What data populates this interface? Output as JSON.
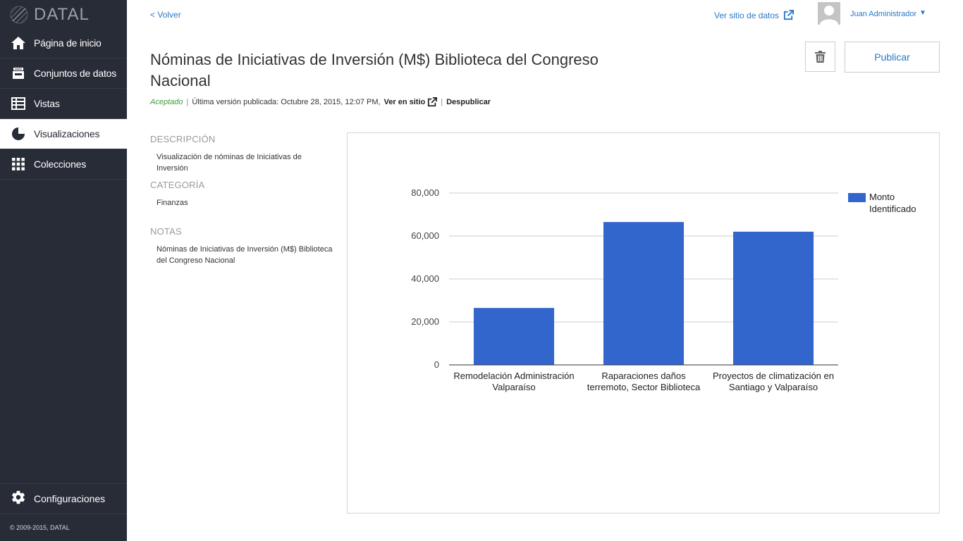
{
  "app": {
    "logo_text": "DATAL",
    "copyright": "© 2009-2015, DATAL"
  },
  "sidebar": {
    "items": [
      {
        "label": "Página de inicio",
        "icon": "home-icon",
        "active": false
      },
      {
        "label": "Conjuntos de datos",
        "icon": "inbox-icon",
        "active": false
      },
      {
        "label": "Vistas",
        "icon": "table-icon",
        "active": false
      },
      {
        "label": "Visualizaciones",
        "icon": "pie-chart-icon",
        "active": true
      },
      {
        "label": "Colecciones",
        "icon": "grid-icon",
        "active": false
      }
    ],
    "settings_label": "Configuraciones"
  },
  "header": {
    "back_label": "< Volver",
    "site_link_label": "Ver sitio de datos",
    "user_name": "Juan Administrador",
    "user_caret": "▼"
  },
  "page": {
    "title": "Nóminas de Iniciativas de Inversión (M$) Biblioteca del Congreso Nacional",
    "publish_label": "Publicar",
    "status": "Aceptado",
    "status_sep": "|",
    "last_version": "Última versión publicada: Octubre 28, 2015, 12:07 PM,",
    "view_site_label": "Ver en sitio",
    "unpublish_label": "Despublicar"
  },
  "meta": {
    "description_heading": "DESCRIPCIÓN",
    "description": "Visualización de nóminas de Iniciativas de Inversión",
    "category_heading": "CATEGORÍA",
    "category": "Finanzas",
    "notes_heading": "NOTAS",
    "notes": "Nóminas de Iniciativas de Inversión (M$) Biblioteca del Congreso Nacional"
  },
  "colors": {
    "sidebar_bg": "#282c36",
    "link": "#2a78c8",
    "bar": "#3366cc",
    "accepted": "#3a9b3a"
  },
  "chart_data": {
    "type": "bar",
    "categories": [
      [
        "Remodelación Administración",
        "Valparaíso"
      ],
      [
        "Raparaciones daños",
        "terremoto, Sector Biblioteca"
      ],
      [
        "Proyectos de climatización en",
        "Santiago y Valparaíso"
      ]
    ],
    "series": [
      {
        "name": "Monto Identificado",
        "legend_lines": [
          "Monto",
          "Identificado"
        ],
        "values": [
          26500,
          66500,
          62000
        ],
        "color": "#3366cc"
      }
    ],
    "ylim": [
      0,
      80000
    ],
    "yticks": [
      0,
      20000,
      40000,
      60000,
      80000
    ],
    "ytick_labels": [
      "0",
      "20,000",
      "40,000",
      "60,000",
      "80,000"
    ],
    "grid": true,
    "legend_position": "right"
  }
}
